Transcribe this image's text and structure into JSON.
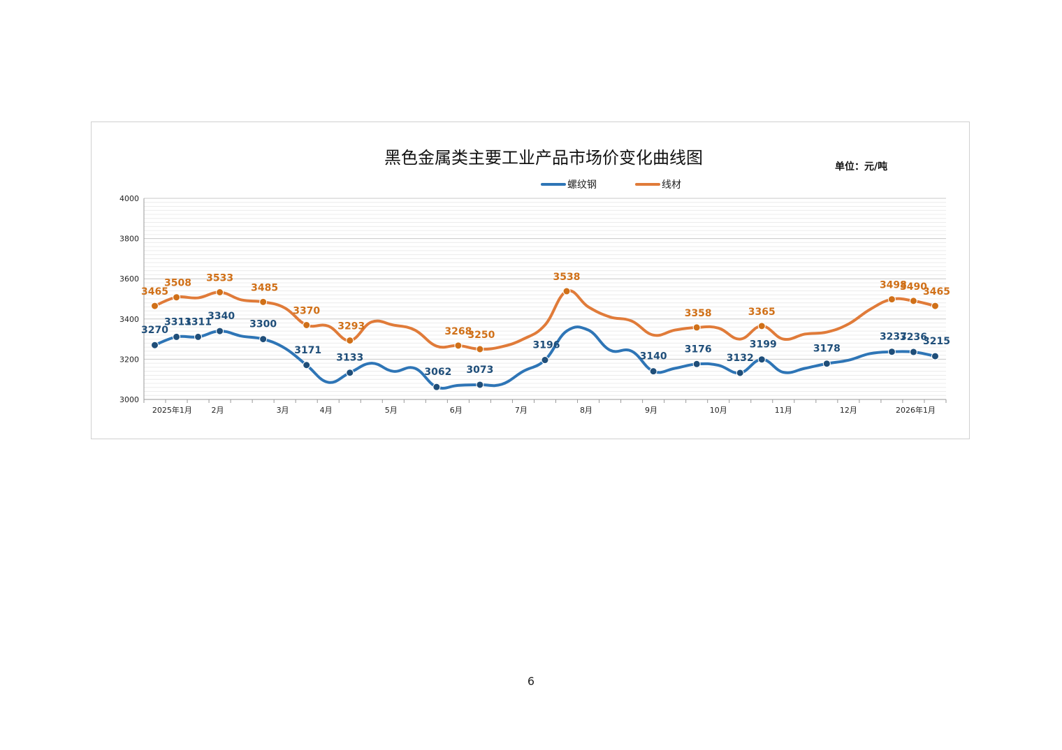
{
  "page": {
    "number": "6"
  },
  "chart_data": {
    "type": "line",
    "title": "黑色金属类主要工业产品市场价变化曲线图",
    "unit_label": "单位：元/吨",
    "legend_position": "top",
    "ylim": [
      3000,
      4000
    ],
    "y_ticks": [
      3000,
      3200,
      3400,
      3600,
      3800,
      4000
    ],
    "grid": true,
    "month_labels": [
      {
        "label": "2025年1月",
        "x": 1.3
      },
      {
        "label": "2月",
        "x": 3.4
      },
      {
        "label": "3月",
        "x": 6.4
      },
      {
        "label": "4月",
        "x": 8.4
      },
      {
        "label": "5月",
        "x": 11.4
      },
      {
        "label": "6月",
        "x": 14.4
      },
      {
        "label": "7月",
        "x": 17.4
      },
      {
        "label": "8月",
        "x": 20.4
      },
      {
        "label": "9月",
        "x": 23.4
      },
      {
        "label": "10月",
        "x": 26.5
      },
      {
        "label": "11月",
        "x": 29.5
      },
      {
        "label": "12月",
        "x": 32.5
      },
      {
        "label": "2026年1月",
        "x": 35.6
      }
    ],
    "series": [
      {
        "name": "螺纹钢",
        "color": "#2e75b6",
        "label_color": "#1f4e79",
        "x": [
          0.5,
          1.5,
          2.5,
          3.5,
          4.5,
          5.5,
          6.5,
          7.5,
          8.5,
          9.5,
          10.5,
          11.5,
          12.5,
          13.5,
          14.5,
          15.5,
          16.5,
          17.5,
          18.5,
          19.5,
          20.5,
          21.5,
          22.5,
          23.5,
          24.5,
          25.5,
          26.5,
          27.5,
          28.5,
          29.5,
          30.5,
          31.5,
          32.5,
          33.5,
          34.5,
          35.5,
          36.5
        ],
        "values": [
          3270,
          3311,
          3311,
          3340,
          3315,
          3300,
          3255,
          3171,
          3085,
          3133,
          3180,
          3140,
          3155,
          3062,
          3070,
          3073,
          3075,
          3140,
          3196,
          3340,
          3345,
          3245,
          3240,
          3140,
          3155,
          3176,
          3170,
          3132,
          3199,
          3135,
          3155,
          3178,
          3195,
          3228,
          3237,
          3236,
          3215
        ],
        "labeled_points": [
          {
            "i": 0,
            "text": "3270"
          },
          {
            "i": 1,
            "text": "3311"
          },
          {
            "i": 2,
            "text": "3311"
          },
          {
            "i": 3,
            "text": "3340"
          },
          {
            "i": 5,
            "text": "3300"
          },
          {
            "i": 7,
            "text": "3171"
          },
          {
            "i": 9,
            "text": "3133"
          },
          {
            "i": 13,
            "text": "3062"
          },
          {
            "i": 15,
            "text": "3073"
          },
          {
            "i": 18,
            "text": "3196"
          },
          {
            "i": 23,
            "text": "3140"
          },
          {
            "i": 25,
            "text": "3176"
          },
          {
            "i": 27,
            "text": "3132"
          },
          {
            "i": 28,
            "text": "3199"
          },
          {
            "i": 31,
            "text": "3178"
          },
          {
            "i": 34,
            "text": "3237"
          },
          {
            "i": 35,
            "text": "3236"
          },
          {
            "i": 36,
            "text": "3215"
          }
        ]
      },
      {
        "name": "线材",
        "color": "#e07b39",
        "label_color": "#d07018",
        "x": [
          0.5,
          1.5,
          2.5,
          3.5,
          4.5,
          5.5,
          6.5,
          7.5,
          8.5,
          9.5,
          10.5,
          11.5,
          12.5,
          13.5,
          14.5,
          15.5,
          16.5,
          17.5,
          18.5,
          19.5,
          20.5,
          21.5,
          22.5,
          23.5,
          24.5,
          25.5,
          26.5,
          27.5,
          28.5,
          29.5,
          30.5,
          31.5,
          32.5,
          33.5,
          34.5,
          35.5,
          36.5
        ],
        "values": [
          3465,
          3508,
          3505,
          3533,
          3495,
          3485,
          3455,
          3370,
          3365,
          3293,
          3385,
          3370,
          3345,
          3265,
          3268,
          3250,
          3262,
          3300,
          3370,
          3538,
          3460,
          3410,
          3390,
          3320,
          3345,
          3358,
          3355,
          3300,
          3365,
          3300,
          3325,
          3335,
          3375,
          3448,
          3498,
          3490,
          3465
        ],
        "labeled_points": [
          {
            "i": 0,
            "text": "3465"
          },
          {
            "i": 1,
            "text": "3508"
          },
          {
            "i": 3,
            "text": "3533"
          },
          {
            "i": 5,
            "text": "3485"
          },
          {
            "i": 7,
            "text": "3370"
          },
          {
            "i": 9,
            "text": "3293"
          },
          {
            "i": 14,
            "text": "3268"
          },
          {
            "i": 15,
            "text": "3250"
          },
          {
            "i": 19,
            "text": "3538"
          },
          {
            "i": 25,
            "text": "3358"
          },
          {
            "i": 28,
            "text": "3365"
          },
          {
            "i": 34,
            "text": "3498"
          },
          {
            "i": 35,
            "text": "3490"
          },
          {
            "i": 36,
            "text": "3465"
          }
        ]
      }
    ]
  }
}
